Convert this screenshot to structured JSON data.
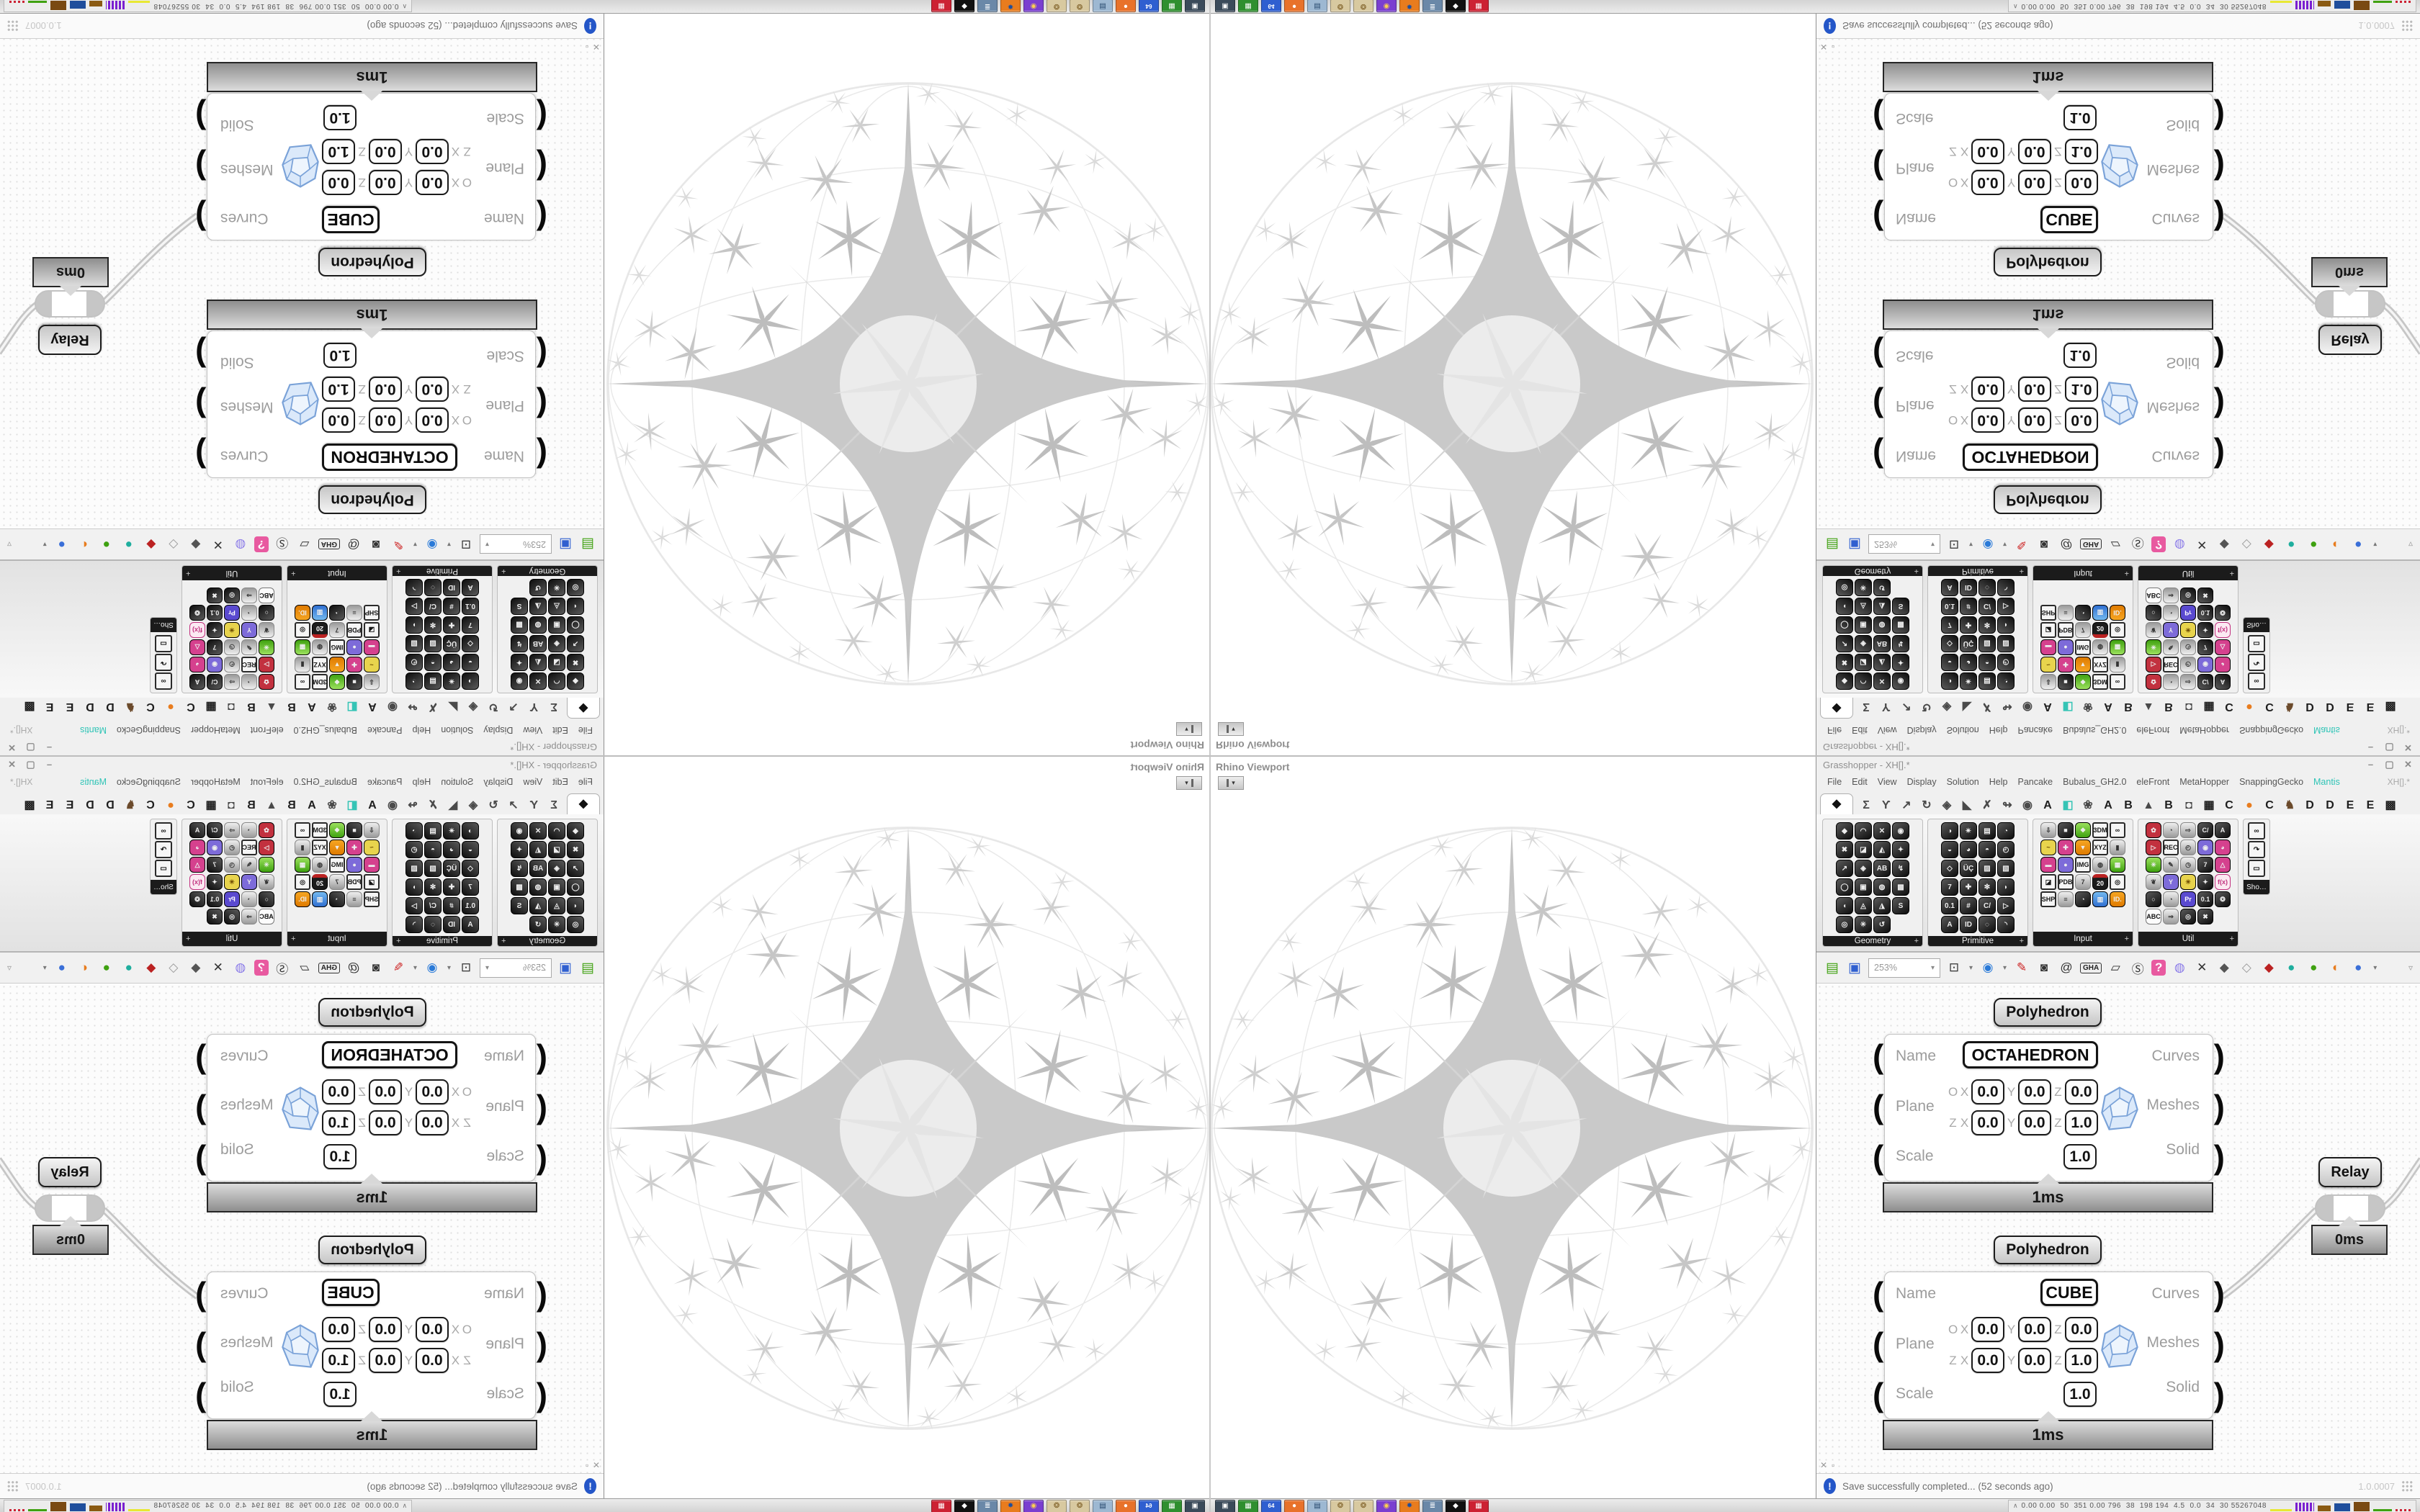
{
  "viewport": {
    "tab_label": "Rhino Viewport",
    "tab_button_glyph": "▾"
  },
  "gh": {
    "window_title": "Grasshopper - XH[].*",
    "window_buttons": {
      "minimize": "–",
      "maximize": "▢",
      "close": "✕"
    },
    "menu_items": [
      {
        "t": "File",
        "name": "menu-file"
      },
      {
        "t": "Edit",
        "name": "menu-edit"
      },
      {
        "t": "View",
        "name": "menu-view"
      },
      {
        "t": "Display",
        "name": "menu-display"
      },
      {
        "t": "Solution",
        "name": "menu-solution"
      },
      {
        "t": "Help",
        "name": "menu-help"
      },
      {
        "t": "Pancake",
        "name": "menu-pancake"
      },
      {
        "t": "Bubalus_GH2.0",
        "name": "menu-bubalus"
      },
      {
        "t": "eleFront",
        "name": "menu-elefront"
      },
      {
        "t": "MetaHopper",
        "name": "menu-metahopper"
      },
      {
        "t": "SnappingGecko",
        "name": "menu-snappinggecko"
      },
      {
        "t": "Mantis",
        "c": "m-teal",
        "name": "menu-mantis"
      }
    ],
    "menu_doc": "XH[].*",
    "tabs": [
      {
        "t": "◆",
        "c": "t-sel",
        "name": "tab-params"
      },
      {
        "t": "Σ",
        "c": "t-dk",
        "name": "tab-maths"
      },
      {
        "t": "Ƴ",
        "c": "t-dk",
        "name": "tab-sets"
      },
      {
        "t": "↗",
        "c": "t-dk",
        "name": "tab-vector"
      },
      {
        "t": "↻",
        "c": "t-dk",
        "name": "tab-curve"
      },
      {
        "t": "◈",
        "c": "t-dk",
        "name": "tab-surface"
      },
      {
        "t": "◣",
        "c": "t-dk",
        "name": "tab-mesh"
      },
      {
        "t": "✗",
        "c": "t-dk",
        "name": "tab-intersect"
      },
      {
        "t": "↬",
        "c": "t-dk",
        "name": "tab-transform"
      },
      {
        "t": "◉",
        "c": "t-dk",
        "name": "tab-display"
      },
      {
        "t": "A",
        "name": "tab-plugin-a"
      },
      {
        "t": "◧",
        "c": "t-teal",
        "name": "tab-plugin-leaf"
      },
      {
        "t": "❀",
        "c": "t-dk",
        "name": "tab-plugin-flower"
      },
      {
        "t": "A",
        "name": "tab-plugin-a2"
      },
      {
        "t": "B",
        "name": "tab-plugin-b"
      },
      {
        "t": "▲",
        "c": "t-dk",
        "name": "tab-plugin-mountain"
      },
      {
        "t": "B",
        "name": "tab-plugin-b2"
      },
      {
        "t": "◘",
        "c": "t-dk",
        "name": "tab-plugin-shield"
      },
      {
        "t": "▦",
        "name": "tab-plugin-grid"
      },
      {
        "t": "C",
        "name": "tab-plugin-c"
      },
      {
        "t": "●",
        "c": "t-orange",
        "name": "tab-plugin-orange"
      },
      {
        "t": "C",
        "name": "tab-plugin-c2"
      },
      {
        "t": "♞",
        "c": "t-brown",
        "name": "tab-plugin-bird"
      },
      {
        "t": "D",
        "name": "tab-plugin-d"
      },
      {
        "t": "D",
        "name": "tab-plugin-d2"
      },
      {
        "t": "E",
        "name": "tab-plugin-e"
      },
      {
        "t": "E",
        "name": "tab-plugin-e2"
      },
      {
        "t": "▩",
        "name": "tab-plugin-dots"
      }
    ],
    "panels": [
      {
        "label": "Geometry",
        "plus": "+",
        "icons": [
          {
            "t": "◆"
          },
          {
            "t": "◠"
          },
          {
            "t": "✕"
          },
          {
            "t": "◉"
          },
          {
            "t": "✖"
          },
          {
            "t": "◪"
          },
          {
            "t": "◭"
          },
          {
            "t": "✦"
          },
          {
            "t": "↗"
          },
          {
            "t": "◈"
          },
          {
            "t": "AB"
          },
          {
            "t": "↯"
          },
          {
            "t": "◯"
          },
          {
            "t": "▣"
          },
          {
            "t": "◍"
          },
          {
            "t": "▩"
          },
          {
            "t": "◖"
          },
          {
            "t": "◬"
          },
          {
            "t": "◮"
          },
          {
            "t": "S"
          },
          {
            "t": "◎"
          },
          {
            "t": "✳"
          },
          {
            "t": "↺"
          }
        ]
      },
      {
        "label": "Primitive",
        "plus": "+",
        "icons": [
          {
            "t": "◑"
          },
          {
            "t": "✴"
          },
          {
            "t": "▤"
          },
          {
            "t": "◔"
          },
          {
            "t": "◒"
          },
          {
            "t": "◕"
          },
          {
            "t": "◓"
          },
          {
            "t": "◴"
          },
          {
            "t": "◇"
          },
          {
            "t": "ÜÇ"
          },
          {
            "t": "▨"
          },
          {
            "t": "▧"
          },
          {
            "t": "7"
          },
          {
            "t": "✚"
          },
          {
            "t": "✻"
          },
          {
            "t": "◗"
          },
          {
            "t": "0.1"
          },
          {
            "t": "#"
          },
          {
            "t": "C/"
          },
          {
            "t": "▷"
          },
          {
            "t": "A"
          },
          {
            "t": "ID"
          },
          {
            "t": "◌"
          },
          {
            "t": "◝"
          }
        ]
      },
      {
        "label": "Input",
        "plus": "+",
        "icons": [
          {
            "t": "⇩",
            "c": "p-gray"
          },
          {
            "t": "■"
          },
          {
            "t": "❖",
            "c": "p-green"
          },
          {
            "t": "3DM",
            "c": "w"
          },
          {
            "t": "∞",
            "c": "w"
          },
          {
            "t": "~",
            "c": "p-yellow"
          },
          {
            "t": "✚",
            "c": "p-pink"
          },
          {
            "t": "▼",
            "c": "p-orange"
          },
          {
            "t": "XYZ",
            "c": "w"
          },
          {
            "t": "▮",
            "c": "p-gray"
          },
          {
            "t": "▬",
            "c": "p-pink"
          },
          {
            "t": "●",
            "c": "p-purple"
          },
          {
            "t": "IMG",
            "c": "w"
          },
          {
            "t": "◍",
            "c": "p-gray"
          },
          {
            "t": "▦",
            "c": "p-green"
          },
          {
            "t": "◪",
            "c": "w"
          },
          {
            "t": "PDB",
            "c": "w"
          },
          {
            "t": "7",
            "c": "p-gray"
          },
          {
            "t": "20",
            "c": "p-cal"
          },
          {
            "t": "◎",
            "c": "w"
          },
          {
            "t": "SHP",
            "c": "w"
          },
          {
            "t": "≡",
            "c": "p-gray"
          },
          {
            "t": "◔"
          },
          {
            "t": "▥",
            "c": "p-blue"
          },
          {
            "t": "ID.",
            "c": "p-orange"
          }
        ]
      },
      {
        "label": "Util",
        "plus": "+",
        "icons": [
          {
            "t": "✿",
            "c": "p-red"
          },
          {
            "t": "◔",
            "c": "p-gray"
          },
          {
            "t": "⇨",
            "c": "p-gray"
          },
          {
            "t": "C/"
          },
          {
            "t": "A"
          },
          {
            "t": "▷",
            "c": "p-red"
          },
          {
            "t": "REC",
            "c": "w"
          },
          {
            "t": "◴",
            "c": "p-gray"
          },
          {
            "t": "◉",
            "c": "p-purple"
          },
          {
            "t": "◕",
            "c": "p-pink"
          },
          {
            "t": "✳",
            "c": "p-green"
          },
          {
            "t": "✎",
            "c": "p-gray"
          },
          {
            "t": "◷",
            "c": "p-gray"
          },
          {
            "t": "7"
          },
          {
            "t": "△",
            "c": "p-pink"
          },
          {
            "t": "❦",
            "c": "p-gray"
          },
          {
            "t": "Y",
            "c": "p-purple"
          },
          {
            "t": "☀",
            "c": "p-yellow"
          },
          {
            "t": "✦"
          },
          {
            "t": "f(x)",
            "c": "p-fx"
          },
          {
            "t": "○"
          },
          {
            "t": "◔",
            "c": "p-gray"
          },
          {
            "t": "Pr",
            "c": "p-pr"
          },
          {
            "t": "0.1"
          },
          {
            "t": "❂"
          },
          {
            "t": "ABC",
            "c": "p-ink"
          },
          {
            "t": "⇒",
            "c": "p-gray"
          },
          {
            "t": "◎"
          },
          {
            "t": "✖"
          }
        ]
      },
      {
        "label": "Sho…",
        "plus": "",
        "icons": [
          {
            "t": "∞",
            "c": "w"
          },
          {
            "t": "↷",
            "c": "w"
          },
          {
            "t": "▭",
            "c": "w"
          }
        ]
      }
    ],
    "toolbar_file": [
      {
        "t": "▤",
        "c": "ic-open",
        "name": "open-file-icon"
      },
      {
        "t": "▣",
        "c": "ic-save",
        "name": "save-file-icon"
      }
    ],
    "zoom_value": "253%",
    "zoom_caret": "▾",
    "toolbar_icons": [
      {
        "t": "⊡",
        "c": "ic-dk",
        "name": "zoom-extents-icon"
      },
      {
        "t": "▾",
        "c": "ic-ca",
        "name": "dropdown-caret-icon"
      },
      {
        "t": "◉",
        "c": "ic-eye",
        "name": "preview-eye-icon"
      },
      {
        "t": "▾",
        "c": "ic-ca",
        "name": "dropdown-caret-icon"
      },
      {
        "t": "✎",
        "c": "ic-red",
        "name": "sketch-tool-icon"
      },
      {
        "t": "◙",
        "c": "ic-dk",
        "name": "camera-icon"
      },
      {
        "t": "@",
        "c": "ic-dk",
        "name": "annotate-icon"
      },
      {
        "t": "GHA",
        "c": "ic-badge",
        "name": "gha-assembly-icon"
      },
      {
        "t": "▱",
        "c": "ic-dk",
        "name": "window-layout-icon"
      },
      {
        "t": "Ⓢ",
        "c": "ic-dk",
        "name": "finder-icon"
      },
      {
        "t": "?",
        "c": "ic-pink",
        "name": "help-package-icon"
      },
      {
        "t": "◍",
        "c": "ic-purp",
        "name": "balloon-icon"
      },
      {
        "t": "✕",
        "c": "ic-dk",
        "name": "galapagos-icon"
      },
      {
        "t": "◆",
        "c": "ic-gem1",
        "name": "preview-off-icon"
      },
      {
        "t": "◇",
        "c": "ic-gem2",
        "name": "preview-wireframe-icon"
      },
      {
        "t": "◆",
        "c": "ic-gem3",
        "name": "preview-shaded-icon"
      },
      {
        "t": "●",
        "c": "ic-teal",
        "name": "pin-teal-icon"
      },
      {
        "t": "●",
        "c": "ic-grn",
        "name": "pin-green-icon"
      },
      {
        "t": "◐",
        "c": "ic-org",
        "name": "sphere-orange-icon"
      },
      {
        "t": "●",
        "c": "ic-blu",
        "name": "sphere-blue-icon"
      },
      {
        "t": "▾",
        "c": "ic-ca",
        "name": "dropdown-caret-icon"
      }
    ],
    "toolbar_overflow": "▿",
    "labels": {
      "name": "Name",
      "plane": "Plane",
      "scale": "Scale",
      "curves": "Curves",
      "meshes": "Meshes",
      "solid": "Solid",
      "o": "O",
      "x": "X",
      "y": "Y",
      "z": "Z",
      "hook_in": "(",
      "hook_out": ")"
    },
    "canvas": {
      "poly1": {
        "header": "Polyhedron",
        "name": "OCTAHEDRON",
        "ox": "0.0",
        "oy": "0.0",
        "oz": "0.0",
        "zx": "0.0",
        "zy": "0.0",
        "zz": "1.0",
        "scale": "1.0",
        "time": "1ms"
      },
      "poly2": {
        "header": "Polyhedron",
        "name": "CUBE",
        "ox": "0.0",
        "oy": "0.0",
        "oz": "0.0",
        "zx": "0.0",
        "zy": "0.0",
        "zz": "1.0",
        "scale": "1.0",
        "time": "1ms"
      },
      "relay": {
        "label": "Relay",
        "time": "0ms"
      },
      "widgets": {
        "close": "✕",
        "box": "▫"
      }
    },
    "status": {
      "icon_glyph": "!",
      "message": "Save successfully completed... (52 seconds ago)",
      "version": "1.0.0007"
    }
  },
  "taskbar": {
    "apps": [
      {
        "t": "▣",
        "c": "a1",
        "name": "screenshot-tool-icon"
      },
      {
        "t": "▦",
        "c": "a2",
        "name": "package-manager-icon"
      },
      {
        "t": "64",
        "c": "a3",
        "name": "floppy-64-icon"
      },
      {
        "t": "●",
        "c": "a4",
        "name": "firefox-icon"
      },
      {
        "t": "▤",
        "c": "a5",
        "name": "calculator-icon"
      },
      {
        "t": "❂",
        "c": "a6",
        "name": "paint-palette-icon"
      },
      {
        "t": "❂",
        "c": "a6",
        "name": "paint-palette-icon"
      },
      {
        "t": "◉",
        "c": "a7",
        "name": "chat-app-icon"
      },
      {
        "t": "✸",
        "c": "a8",
        "name": "blender-icon"
      },
      {
        "t": "≣",
        "c": "a9",
        "name": "document-viewer-icon"
      },
      {
        "t": "◆",
        "c": "a10",
        "name": "inkscape-icon"
      },
      {
        "t": "▦",
        "c": "a11",
        "name": "circuit-app-icon"
      }
    ],
    "sysmon": {
      "caret": "∧",
      "values": "0.00 0.00  50  351 0.00 796  38  198 194  4.5  0.0  34  30 55267048"
    }
  }
}
